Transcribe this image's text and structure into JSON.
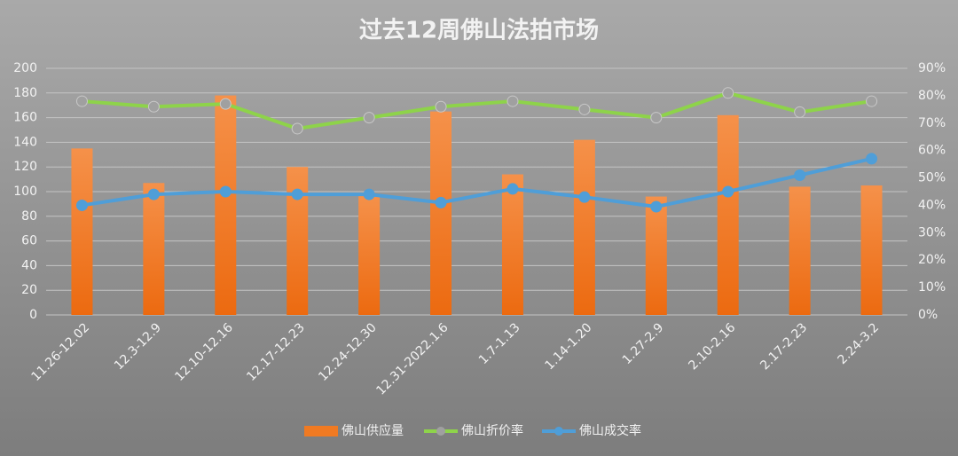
{
  "chart_data": {
    "type": "bar-line",
    "title": "过去12周佛山法拍市场",
    "categories": [
      "11.26-12.02",
      "12.3-12.9",
      "12.10-12.16",
      "12.17-12.23",
      "12.24-12.30",
      "12.31-2022.1.6",
      "1.7-1.13",
      "1.14-1.20",
      "1.27-2.9",
      "2.10-2.16",
      "2.17-2.23",
      "2.24-3.2"
    ],
    "series": [
      {
        "name": "佛山供应量",
        "type": "bar",
        "color": "#f07a22",
        "values": [
          135,
          107,
          178,
          120,
          97,
          165,
          114,
          142,
          96,
          162,
          104,
          105
        ]
      },
      {
        "name": "佛山折价率",
        "type": "line",
        "axis": "y2",
        "color": "#8ed34a",
        "values": [
          78,
          76,
          77,
          68,
          72,
          76,
          78,
          75,
          72,
          81,
          74,
          78
        ]
      },
      {
        "name": "佛山成交率",
        "type": "line",
        "axis": "y2",
        "color": "#4f9ed8",
        "values": [
          40,
          44,
          45,
          44,
          44,
          41,
          46,
          43,
          39.5,
          45,
          51,
          57
        ]
      }
    ],
    "ylim": [
      0,
      200
    ],
    "yticks": [
      0,
      20,
      40,
      60,
      80,
      100,
      120,
      140,
      160,
      180,
      200
    ],
    "y2lim": [
      0,
      90
    ],
    "y2ticks": [
      {
        "value": 0,
        "label": "0%"
      },
      {
        "value": 10,
        "label": "10%"
      },
      {
        "value": 20,
        "label": "20%"
      },
      {
        "value": 30,
        "label": "30%"
      },
      {
        "value": 40,
        "label": "40%"
      },
      {
        "value": 50,
        "label": "50%"
      },
      {
        "value": 60,
        "label": "60%"
      },
      {
        "value": 70,
        "label": "70%"
      },
      {
        "value": 80,
        "label": "80%"
      },
      {
        "value": 90,
        "label": "90%"
      }
    ],
    "grid": true,
    "legend": "bottom"
  }
}
